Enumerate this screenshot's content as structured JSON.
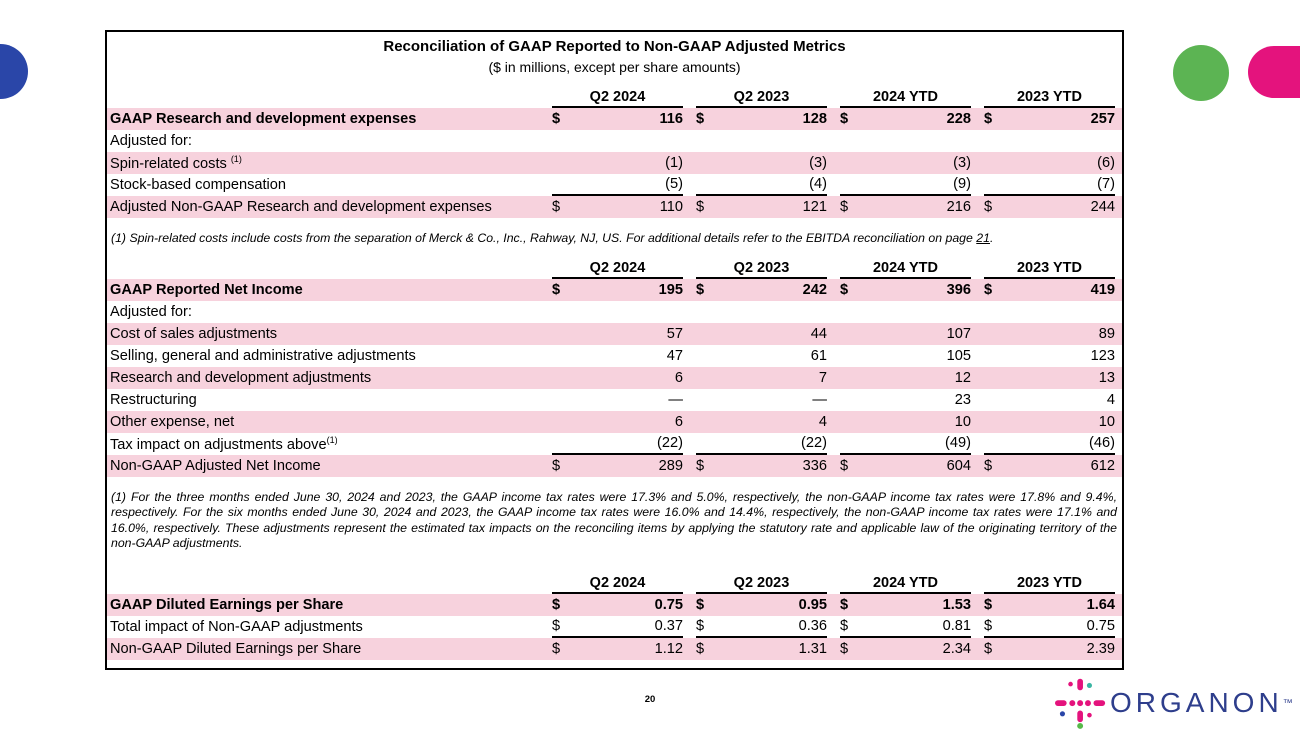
{
  "colors": {
    "row_pink": "#F7D2DD",
    "deco_blue": "#2A46A8",
    "deco_green": "#5CB453",
    "deco_magenta": "#E4137D",
    "logo_navy": "#2E3E8C",
    "logo_teal": "#3AB5A3",
    "logo_green": "#56B949"
  },
  "slide": {
    "title": "Reconciliation of GAAP Reported to Non-GAAP Adjusted Metrics",
    "subtitle": "($ in millions, except per share amounts)",
    "page_number": "20",
    "logo_text": "ORGANON",
    "logo_tm": "™"
  },
  "table": {
    "currency": "$",
    "columns": [
      "Q2 2024",
      "Q2 2023",
      "2024 YTD",
      "2023 YTD"
    ],
    "sections": [
      {
        "rows": [
          {
            "label": "GAAP Research and development expenses",
            "bold": true,
            "shaded": true,
            "dollar": true,
            "values": [
              "116",
              "128",
              "228",
              "257"
            ]
          },
          {
            "label": "Adjusted for:",
            "values": [
              "",
              "",
              "",
              ""
            ]
          },
          {
            "label": "Spin-related costs",
            "sup": "(1)",
            "sup_gap": true,
            "shaded": true,
            "values": [
              "(1)",
              "(3)",
              "(3)",
              "(6)"
            ]
          },
          {
            "label": "Stock-based compensation",
            "rule": true,
            "values": [
              "(5)",
              "(4)",
              "(9)",
              "(7)"
            ]
          },
          {
            "label": "Adjusted Non-GAAP Research and development expenses",
            "shaded": true,
            "dollar": true,
            "values": [
              "110",
              "121",
              "216",
              "244"
            ]
          }
        ],
        "footnote_parts": {
          "prefix": "(1) Spin-related costs include costs from the separation of Merck & Co., Inc., Rahway, NJ, US. For additional details refer to the EBITDA reconciliation on page ",
          "link": "21",
          "suffix": "."
        }
      },
      {
        "rows": [
          {
            "label": "GAAP Reported Net Income",
            "bold": true,
            "shaded": true,
            "dollar": true,
            "values": [
              "195",
              "242",
              "396",
              "419"
            ]
          },
          {
            "label": "Adjusted for:",
            "values": [
              "",
              "",
              "",
              ""
            ]
          },
          {
            "label": "Cost of sales adjustments",
            "shaded": true,
            "values": [
              "57",
              "44",
              "107",
              "89"
            ]
          },
          {
            "label": "Selling, general and administrative adjustments",
            "values": [
              "47",
              "61",
              "105",
              "123"
            ]
          },
          {
            "label": "Research and development adjustments",
            "shaded": true,
            "values": [
              "6",
              "7",
              "12",
              "13"
            ]
          },
          {
            "label": "Restructuring",
            "values": [
              "—",
              "—",
              "23",
              "4"
            ]
          },
          {
            "label": "Other expense, net",
            "shaded": true,
            "values": [
              "6",
              "4",
              "10",
              "10"
            ]
          },
          {
            "label": "Tax impact on adjustments above",
            "sup": "(1)",
            "rule": true,
            "values": [
              "(22)",
              "(22)",
              "(49)",
              "(46)"
            ]
          },
          {
            "label": "Non-GAAP Adjusted Net Income",
            "shaded": true,
            "dollar": true,
            "values": [
              "289",
              "336",
              "604",
              "612"
            ]
          }
        ],
        "footnote": "(1) For the three months ended June 30, 2024 and 2023, the GAAP income tax rates were 17.3% and 5.0%, respectively, the non-GAAP income tax rates were 17.8% and 9.4%, respectively. For the six months ended June 30, 2024 and 2023, the GAAP income tax rates were 16.0% and 14.4%, respectively, the non-GAAP income tax rates were 17.1% and 16.0%, respectively. These adjustments represent the estimated tax impacts on the reconciling items by applying the statutory rate and applicable law of the originating territory of the non-GAAP adjustments."
      },
      {
        "rows": [
          {
            "label": "GAAP Diluted Earnings per Share",
            "bold": true,
            "shaded": true,
            "dollar": true,
            "values": [
              "0.75",
              "0.95",
              "1.53",
              "1.64"
            ]
          },
          {
            "label": "Total impact of Non-GAAP adjustments",
            "dollar": true,
            "rule": true,
            "values": [
              "0.37",
              "0.36",
              "0.81",
              "0.75"
            ]
          },
          {
            "label": "Non-GAAP Diluted Earnings per Share",
            "shaded": true,
            "dollar": true,
            "values": [
              "1.12",
              "1.31",
              "2.34",
              "2.39"
            ]
          }
        ]
      }
    ]
  }
}
